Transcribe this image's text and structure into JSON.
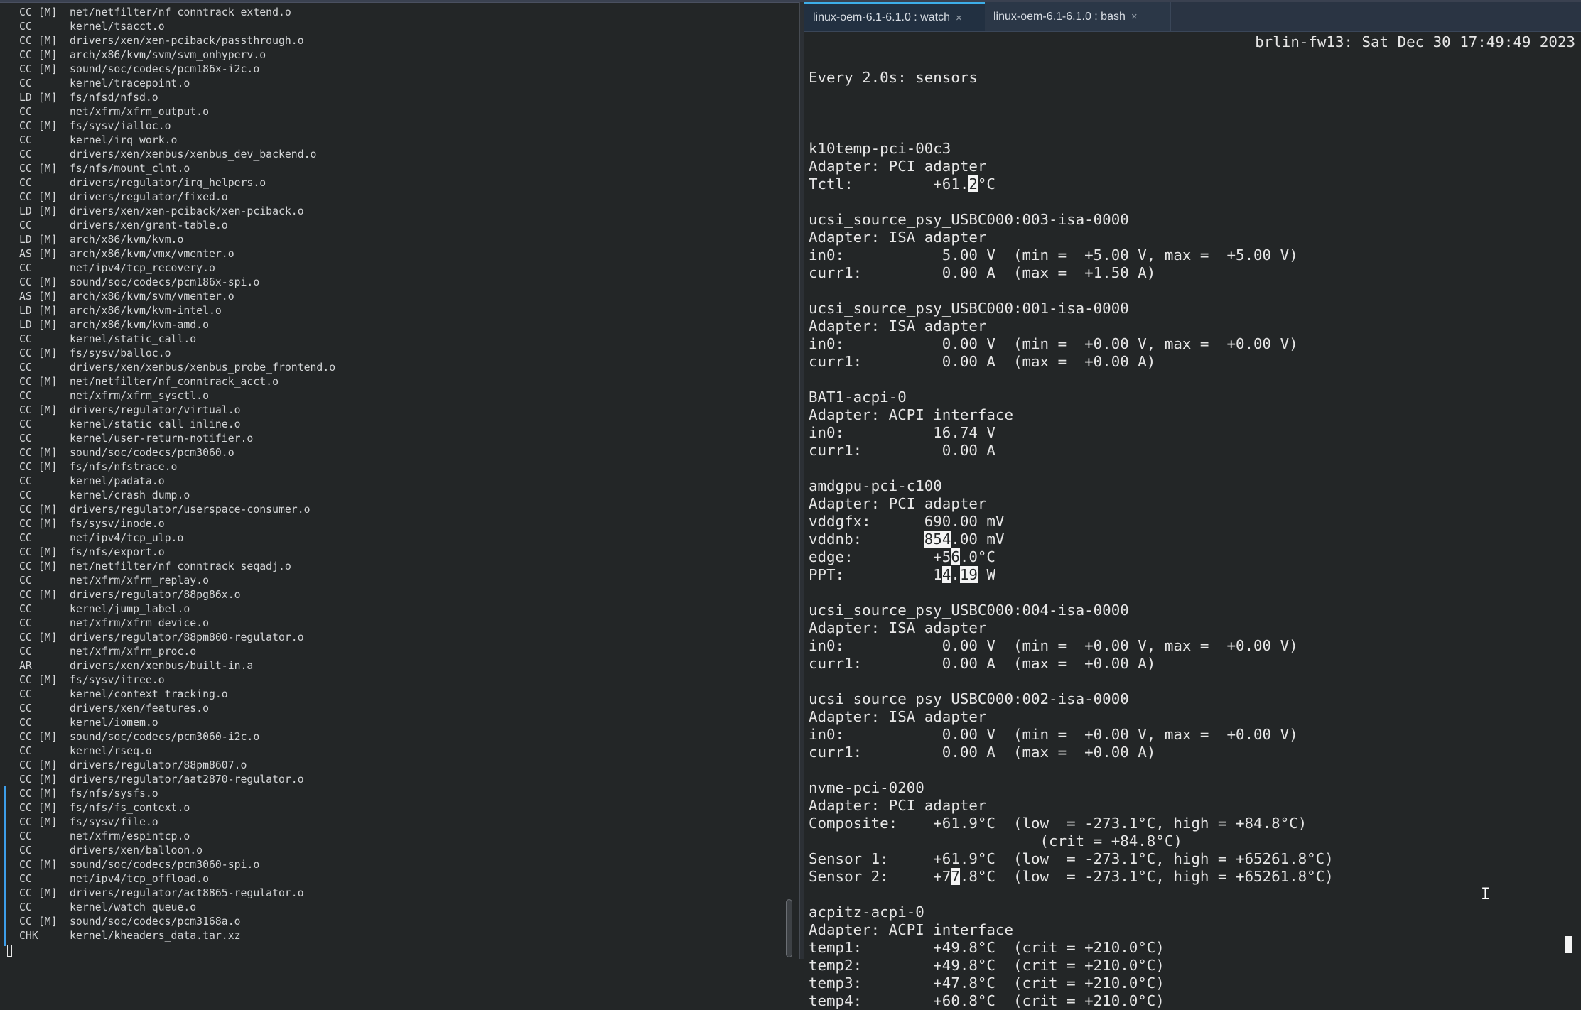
{
  "left_pane": {
    "lines": [
      [
        "CC [M]",
        "net/netfilter/nf_conntrack_extend.o"
      ],
      [
        "CC",
        "kernel/tsacct.o"
      ],
      [
        "CC [M]",
        "drivers/xen/xen-pciback/passthrough.o"
      ],
      [
        "CC [M]",
        "arch/x86/kvm/svm/svm_onhyperv.o"
      ],
      [
        "CC [M]",
        "sound/soc/codecs/pcm186x-i2c.o"
      ],
      [
        "CC",
        "kernel/tracepoint.o"
      ],
      [
        "LD [M]",
        "fs/nfsd/nfsd.o"
      ],
      [
        "CC",
        "net/xfrm/xfrm_output.o"
      ],
      [
        "CC [M]",
        "fs/sysv/ialloc.o"
      ],
      [
        "CC",
        "kernel/irq_work.o"
      ],
      [
        "CC",
        "drivers/xen/xenbus/xenbus_dev_backend.o"
      ],
      [
        "CC [M]",
        "fs/nfs/mount_clnt.o"
      ],
      [
        "CC",
        "drivers/regulator/irq_helpers.o"
      ],
      [
        "CC [M]",
        "drivers/regulator/fixed.o"
      ],
      [
        "LD [M]",
        "drivers/xen/xen-pciback/xen-pciback.o"
      ],
      [
        "CC",
        "drivers/xen/grant-table.o"
      ],
      [
        "LD [M]",
        "arch/x86/kvm/kvm.o"
      ],
      [
        "AS [M]",
        "arch/x86/kvm/vmx/vmenter.o"
      ],
      [
        "CC",
        "net/ipv4/tcp_recovery.o"
      ],
      [
        "CC [M]",
        "sound/soc/codecs/pcm186x-spi.o"
      ],
      [
        "AS [M]",
        "arch/x86/kvm/svm/vmenter.o"
      ],
      [
        "LD [M]",
        "arch/x86/kvm/kvm-intel.o"
      ],
      [
        "LD [M]",
        "arch/x86/kvm/kvm-amd.o"
      ],
      [
        "CC",
        "kernel/static_call.o"
      ],
      [
        "CC [M]",
        "fs/sysv/balloc.o"
      ],
      [
        "CC",
        "drivers/xen/xenbus/xenbus_probe_frontend.o"
      ],
      [
        "CC [M]",
        "net/netfilter/nf_conntrack_acct.o"
      ],
      [
        "CC",
        "net/xfrm/xfrm_sysctl.o"
      ],
      [
        "CC [M]",
        "drivers/regulator/virtual.o"
      ],
      [
        "CC",
        "kernel/static_call_inline.o"
      ],
      [
        "CC",
        "kernel/user-return-notifier.o"
      ],
      [
        "CC [M]",
        "sound/soc/codecs/pcm3060.o"
      ],
      [
        "CC [M]",
        "fs/nfs/nfstrace.o"
      ],
      [
        "CC",
        "kernel/padata.o"
      ],
      [
        "CC",
        "kernel/crash_dump.o"
      ],
      [
        "CC [M]",
        "drivers/regulator/userspace-consumer.o"
      ],
      [
        "CC [M]",
        "fs/sysv/inode.o"
      ],
      [
        "CC",
        "net/ipv4/tcp_ulp.o"
      ],
      [
        "CC [M]",
        "fs/nfs/export.o"
      ],
      [
        "CC [M]",
        "net/netfilter/nf_conntrack_seqadj.o"
      ],
      [
        "CC",
        "net/xfrm/xfrm_replay.o"
      ],
      [
        "CC [M]",
        "drivers/regulator/88pg86x.o"
      ],
      [
        "CC",
        "kernel/jump_label.o"
      ],
      [
        "CC",
        "net/xfrm/xfrm_device.o"
      ],
      [
        "CC [M]",
        "drivers/regulator/88pm800-regulator.o"
      ],
      [
        "CC",
        "net/xfrm/xfrm_proc.o"
      ],
      [
        "AR",
        "drivers/xen/xenbus/built-in.a"
      ],
      [
        "CC [M]",
        "fs/sysv/itree.o"
      ],
      [
        "CC",
        "kernel/context_tracking.o"
      ],
      [
        "CC",
        "drivers/xen/features.o"
      ],
      [
        "CC",
        "kernel/iomem.o"
      ],
      [
        "CC [M]",
        "sound/soc/codecs/pcm3060-i2c.o"
      ],
      [
        "CC",
        "kernel/rseq.o"
      ],
      [
        "CC [M]",
        "drivers/regulator/88pm8607.o"
      ],
      [
        "CC [M]",
        "drivers/regulator/aat2870-regulator.o"
      ],
      [
        "CC [M]",
        "fs/nfs/sysfs.o"
      ],
      [
        "CC [M]",
        "fs/nfs/fs_context.o"
      ],
      [
        "CC [M]",
        "fs/sysv/file.o"
      ],
      [
        "CC",
        "net/xfrm/espintcp.o"
      ],
      [
        "CC",
        "drivers/xen/balloon.o"
      ],
      [
        "CC [M]",
        "sound/soc/codecs/pcm3060-spi.o"
      ],
      [
        "CC",
        "net/ipv4/tcp_offload.o"
      ],
      [
        "CC [M]",
        "drivers/regulator/act8865-regulator.o"
      ],
      [
        "CC",
        "kernel/watch_queue.o"
      ],
      [
        "CC [M]",
        "sound/soc/codecs/pcm3168a.o"
      ],
      [
        "CHK",
        "kernel/kheaders_data.tar.xz"
      ]
    ]
  },
  "tabs": [
    {
      "label": "linux-oem-6.1-6.1.0 : watch",
      "close": "×",
      "active": true
    },
    {
      "label": "linux-oem-6.1-6.1.0 : bash",
      "close": "×",
      "active": false
    }
  ],
  "colors": {
    "accent": "#3daee9",
    "background": "#232627",
    "tabbar": "#2a3443"
  },
  "watch": {
    "header_left": "Every 2.0s: sensors",
    "header_right": "brlin-fw13: Sat Dec 30 17:49:49 2023",
    "lines": [
      [],
      [
        {
          "t": "k10temp-pci-00c3"
        }
      ],
      [
        {
          "t": "Adapter: PCI adapter"
        }
      ],
      [
        {
          "t": "Tctl:         +61."
        },
        {
          "t": "2",
          "hl": true
        },
        {
          "t": "°C"
        }
      ],
      [],
      [
        {
          "t": "ucsi_source_psy_USBC000:003-isa-0000"
        }
      ],
      [
        {
          "t": "Adapter: ISA adapter"
        }
      ],
      [
        {
          "t": "in0:           5.00 V  (min =  +5.00 V, max =  +5.00 V)"
        }
      ],
      [
        {
          "t": "curr1:         0.00 A  (max =  +1.50 A)"
        }
      ],
      [],
      [
        {
          "t": "ucsi_source_psy_USBC000:001-isa-0000"
        }
      ],
      [
        {
          "t": "Adapter: ISA adapter"
        }
      ],
      [
        {
          "t": "in0:           0.00 V  (min =  +0.00 V, max =  +0.00 V)"
        }
      ],
      [
        {
          "t": "curr1:         0.00 A  (max =  +0.00 A)"
        }
      ],
      [],
      [
        {
          "t": "BAT1-acpi-0"
        }
      ],
      [
        {
          "t": "Adapter: ACPI interface"
        }
      ],
      [
        {
          "t": "in0:          16.74 V"
        }
      ],
      [
        {
          "t": "curr1:         0.00 A"
        }
      ],
      [],
      [
        {
          "t": "amdgpu-pci-c100"
        }
      ],
      [
        {
          "t": "Adapter: PCI adapter"
        }
      ],
      [
        {
          "t": "vddgfx:      690.00 mV"
        }
      ],
      [
        {
          "t": "vddnb:       "
        },
        {
          "t": "854",
          "hl": true
        },
        {
          "t": ".00 mV"
        }
      ],
      [
        {
          "t": "edge:         +5"
        },
        {
          "t": "6",
          "hl": true
        },
        {
          "t": ".0°C"
        }
      ],
      [
        {
          "t": "PPT:          1"
        },
        {
          "t": "4",
          "hl": true
        },
        {
          "t": "."
        },
        {
          "t": "19",
          "hl": true
        },
        {
          "t": " W"
        }
      ],
      [],
      [
        {
          "t": "ucsi_source_psy_USBC000:004-isa-0000"
        }
      ],
      [
        {
          "t": "Adapter: ISA adapter"
        }
      ],
      [
        {
          "t": "in0:           0.00 V  (min =  +0.00 V, max =  +0.00 V)"
        }
      ],
      [
        {
          "t": "curr1:         0.00 A  (max =  +0.00 A)"
        }
      ],
      [],
      [
        {
          "t": "ucsi_source_psy_USBC000:002-isa-0000"
        }
      ],
      [
        {
          "t": "Adapter: ISA adapter"
        }
      ],
      [
        {
          "t": "in0:           0.00 V  (min =  +0.00 V, max =  +0.00 V)"
        }
      ],
      [
        {
          "t": "curr1:         0.00 A  (max =  +0.00 A)"
        }
      ],
      [],
      [
        {
          "t": "nvme-pci-0200"
        }
      ],
      [
        {
          "t": "Adapter: PCI adapter"
        }
      ],
      [
        {
          "t": "Composite:    +61.9°C  (low  = -273.1°C, high = +84.8°C)"
        }
      ],
      [
        {
          "t": "                          (crit = +84.8°C)"
        }
      ],
      [
        {
          "t": "Sensor 1:     +61.9°C  (low  = -273.1°C, high = +65261.8°C)"
        }
      ],
      [
        {
          "t": "Sensor 2:     +7"
        },
        {
          "t": "7",
          "hl": true
        },
        {
          "t": ".8°C  (low  = -273.1°C, high = +65261.8°C)"
        }
      ],
      [],
      [
        {
          "t": "acpitz-acpi-0"
        }
      ],
      [
        {
          "t": "Adapter: ACPI interface"
        }
      ],
      [
        {
          "t": "temp1:        +49.8°C  (crit = +210.0°C)"
        }
      ],
      [
        {
          "t": "temp2:        +49.8°C  (crit = +210.0°C)"
        }
      ],
      [
        {
          "t": "temp3:        +47.8°C  (crit = +210.0°C)"
        }
      ],
      [
        {
          "t": "temp4:        +60.8°C  (crit = +210.0°C)"
        }
      ]
    ]
  }
}
